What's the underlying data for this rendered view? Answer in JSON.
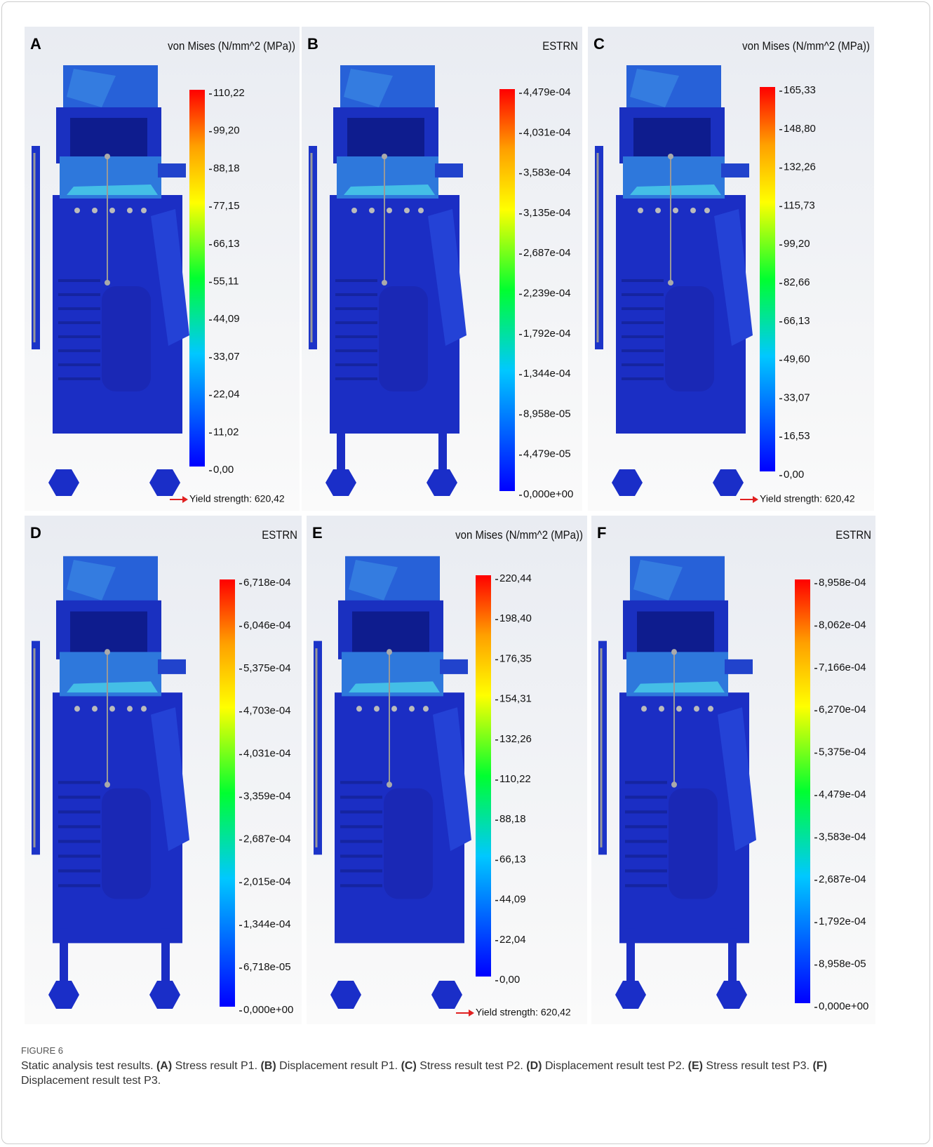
{
  "panels": [
    {
      "letter": "A",
      "legend_title": "von Mises (N/mm^2 (MPa))",
      "scale": [
        "110,22",
        "99,20",
        "88,18",
        "77,15",
        "66,13",
        "55,11",
        "44,09",
        "33,07",
        "22,04",
        "11,02",
        "0,00"
      ],
      "yield": "Yield strength: 620,42"
    },
    {
      "letter": "B",
      "legend_title": "ESTRN",
      "scale": [
        "4,479e-04",
        "4,031e-04",
        "3,583e-04",
        "3,135e-04",
        "2,687e-04",
        "2,239e-04",
        "1,792e-04",
        "1,344e-04",
        "8,958e-05",
        "4,479e-05",
        "0,000e+00"
      ]
    },
    {
      "letter": "C",
      "legend_title": "von Mises (N/mm^2 (MPa))",
      "scale": [
        "165,33",
        "148,80",
        "132,26",
        "115,73",
        "99,20",
        "82,66",
        "66,13",
        "49,60",
        "33,07",
        "16,53",
        "0,00"
      ],
      "yield": "Yield strength: 620,42"
    },
    {
      "letter": "D",
      "legend_title": "ESTRN",
      "scale": [
        "6,718e-04",
        "6,046e-04",
        "5,375e-04",
        "4,703e-04",
        "4,031e-04",
        "3,359e-04",
        "2,687e-04",
        "2,015e-04",
        "1,344e-04",
        "6,718e-05",
        "0,000e+00"
      ]
    },
    {
      "letter": "E",
      "legend_title": "von Mises (N/mm^2 (MPa))",
      "scale": [
        "220,44",
        "198,40",
        "176,35",
        "154,31",
        "132,26",
        "110,22",
        "88,18",
        "66,13",
        "44,09",
        "22,04",
        "0,00"
      ],
      "yield": "Yield strength: 620,42"
    },
    {
      "letter": "F",
      "legend_title": "ESTRN",
      "scale": [
        "8,958e-04",
        "8,062e-04",
        "7,166e-04",
        "6,270e-04",
        "5,375e-04",
        "4,479e-04",
        "3,583e-04",
        "2,687e-04",
        "1,792e-04",
        "8,958e-05",
        "0,000e+00"
      ]
    }
  ],
  "caption": {
    "label": "FIGURE 6",
    "intro": "Static analysis test results.",
    "items": [
      {
        "key": "(A)",
        "text": "Stress result P1."
      },
      {
        "key": "(B)",
        "text": "Displacement result P1."
      },
      {
        "key": "(C)",
        "text": "Stress result test P2."
      },
      {
        "key": "(D)",
        "text": "Displacement result test P2."
      },
      {
        "key": "(E)",
        "text": "Stress result test P3."
      },
      {
        "key": "(F)",
        "text": "Displacement result test P3."
      }
    ]
  }
}
